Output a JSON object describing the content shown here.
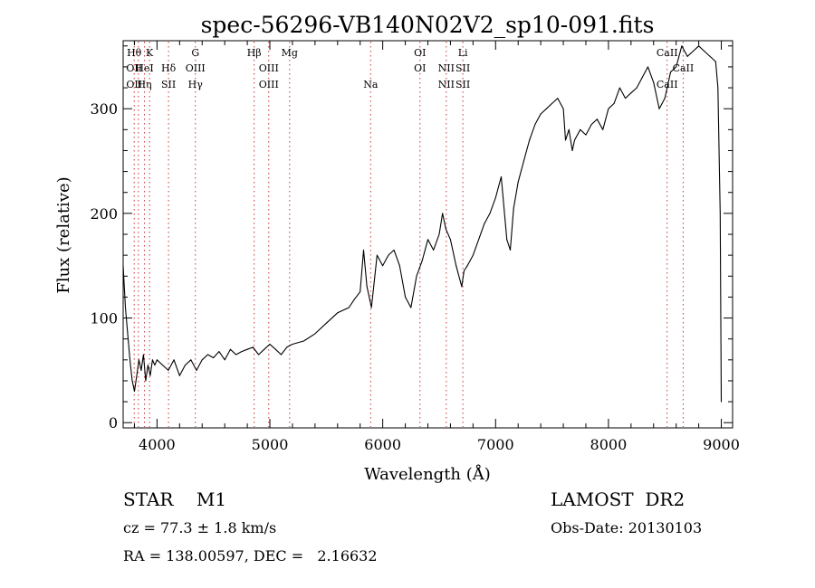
{
  "chart_data": {
    "type": "line",
    "title": "spec-56296-VB140N02V2_sp10-091.fits",
    "xlabel": "Wavelength (Å)",
    "ylabel": "Flux (relative)",
    "xlim": [
      3700,
      9100
    ],
    "ylim": [
      -5,
      365
    ],
    "xticks": [
      4000,
      5000,
      6000,
      7000,
      8000,
      9000
    ],
    "yticks": [
      0,
      100,
      200,
      300
    ],
    "grid": false,
    "series": [
      {
        "x": [
          3700,
          3720,
          3740,
          3760,
          3780,
          3800,
          3820,
          3840,
          3860,
          3880,
          3900,
          3920,
          3940,
          3960,
          3980,
          4000,
          4050,
          4100,
          4150,
          4200,
          4250,
          4300,
          4350,
          4400,
          4450,
          4500,
          4550,
          4600,
          4650,
          4700,
          4750,
          4800,
          4850,
          4900,
          4950,
          5000,
          5050,
          5100,
          5150,
          5200,
          5300,
          5400,
          5500,
          5600,
          5700,
          5750,
          5800,
          5830,
          5860,
          5900,
          5950,
          6000,
          6050,
          6100,
          6150,
          6200,
          6250,
          6300,
          6350,
          6400,
          6450,
          6500,
          6530,
          6560,
          6600,
          6650,
          6700,
          6720,
          6750,
          6800,
          6850,
          6900,
          6950,
          7000,
          7050,
          7100,
          7130,
          7160,
          7200,
          7250,
          7300,
          7350,
          7400,
          7450,
          7500,
          7550,
          7600,
          7620,
          7650,
          7680,
          7700,
          7750,
          7800,
          7850,
          7900,
          7950,
          8000,
          8050,
          8100,
          8150,
          8200,
          8250,
          8300,
          8350,
          8400,
          8450,
          8500,
          8520,
          8550,
          8600,
          8650,
          8700,
          8750,
          8800,
          8850,
          8900,
          8950,
          8970,
          8990,
          9000
        ],
        "y": [
          150,
          110,
          85,
          60,
          40,
          30,
          45,
          60,
          50,
          65,
          40,
          55,
          45,
          60,
          55,
          60,
          55,
          50,
          60,
          45,
          55,
          60,
          50,
          60,
          65,
          62,
          68,
          60,
          70,
          65,
          68,
          70,
          72,
          65,
          70,
          75,
          70,
          65,
          72,
          75,
          78,
          85,
          95,
          105,
          110,
          118,
          125,
          165,
          130,
          110,
          160,
          150,
          160,
          165,
          150,
          120,
          110,
          140,
          155,
          175,
          165,
          180,
          200,
          185,
          175,
          150,
          130,
          145,
          150,
          160,
          175,
          190,
          200,
          215,
          235,
          175,
          165,
          205,
          230,
          250,
          270,
          285,
          295,
          300,
          305,
          310,
          300,
          270,
          280,
          260,
          270,
          280,
          275,
          285,
          290,
          280,
          300,
          305,
          320,
          310,
          315,
          320,
          330,
          340,
          325,
          300,
          310,
          320,
          335,
          340,
          360,
          350,
          355,
          360,
          355,
          350,
          345,
          320,
          200,
          20
        ]
      }
    ],
    "line_markers": [
      {
        "labels": [
          "Hθ",
          "OII",
          "OII"
        ],
        "x": 3798
      },
      {
        "labels": [
          "",
          "",
          ""
        ],
        "x": 3835
      },
      {
        "labels": [
          "",
          "HeI",
          "Hη"
        ],
        "x": 3889
      },
      {
        "labels": [
          "K",
          "",
          ""
        ],
        "x": 3934
      },
      {
        "labels": [
          "",
          "Hδ",
          "SII"
        ],
        "x": 4102
      },
      {
        "labels": [
          "G",
          "OIII",
          "Hγ"
        ],
        "x": 4340
      },
      {
        "labels": [
          "Hβ",
          "",
          ""
        ],
        "x": 4861
      },
      {
        "labels": [
          "",
          "OIII",
          "OIII"
        ],
        "x": 4990
      },
      {
        "labels": [
          "Mg",
          "",
          ""
        ],
        "x": 5175
      },
      {
        "labels": [
          "",
          "",
          "Na"
        ],
        "x": 5893
      },
      {
        "labels": [
          "OI",
          "OI",
          ""
        ],
        "x": 6330
      },
      {
        "labels": [
          "",
          "NII",
          "NII"
        ],
        "x": 6563
      },
      {
        "labels": [
          "Li",
          "SII",
          "SII"
        ],
        "x": 6710
      },
      {
        "labels": [
          "CaII",
          "",
          "CaII"
        ],
        "x": 8520
      },
      {
        "labels": [
          "",
          "CaII",
          ""
        ],
        "x": 8662
      }
    ]
  },
  "info": {
    "object_class": "STAR    M1",
    "survey": "LAMOST  DR2",
    "redshift": "cz = 77.3 ± 1.8 km/s",
    "obs_date": "Obs-Date: 20130103",
    "coords": "RA = 138.00597, DEC =   2.16632"
  },
  "colors": {
    "axes": "#000000",
    "spectrum": "#000000",
    "marker_line": "#cc3333"
  }
}
